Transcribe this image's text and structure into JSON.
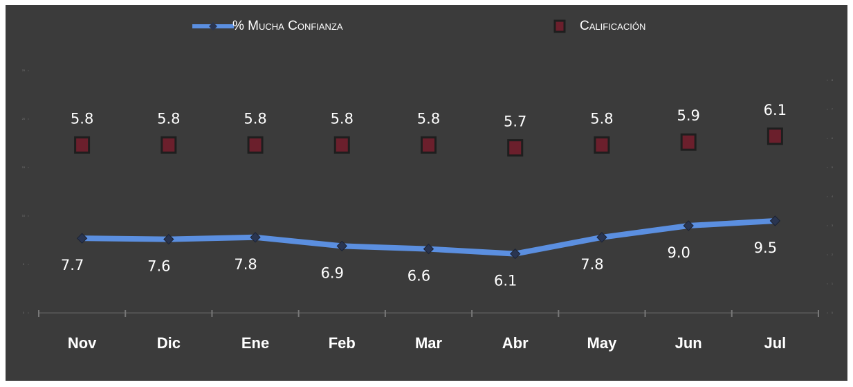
{
  "chart_data": {
    "type": "line",
    "categories": [
      "Nov",
      "Dic",
      "Ene",
      "Feb",
      "Mar",
      "Abr",
      "May",
      "Jun",
      "Jul"
    ],
    "series": [
      {
        "name": "% Mucha Confianza",
        "color": "#5b8fe0",
        "values": [
          7.7,
          7.6,
          7.8,
          6.9,
          6.6,
          6.1,
          7.8,
          9.0,
          9.5
        ],
        "value_labels": [
          "7.7",
          "7.6",
          "7.8",
          "6.9",
          "6.6",
          "6.1",
          "7.8",
          "9.0",
          "9.5"
        ]
      },
      {
        "name": "Calificación",
        "color": "#6b1f2c",
        "axis": "y2",
        "values": [
          5.8,
          5.8,
          5.8,
          5.8,
          5.8,
          5.7,
          5.8,
          5.9,
          6.1
        ]
      }
    ],
    "ylim": [
      0,
      25
    ],
    "yticks": [
      0,
      5,
      10,
      15,
      20,
      25
    ],
    "y2lim": [
      0,
      8
    ],
    "y2ticks": [
      0,
      1,
      2,
      3,
      4,
      5,
      6,
      7,
      8
    ]
  }
}
